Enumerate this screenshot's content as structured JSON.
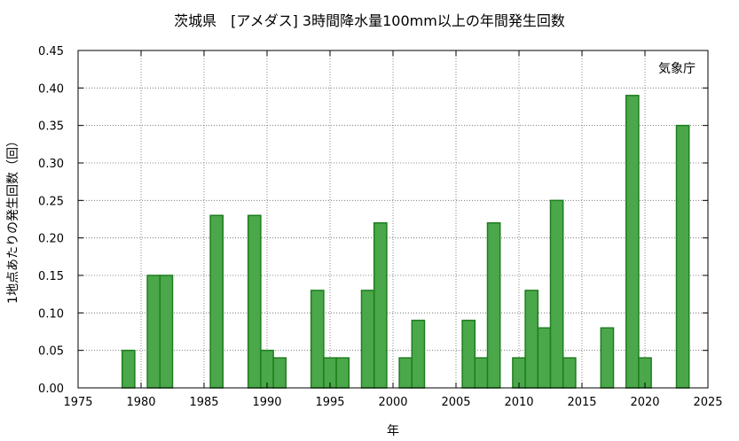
{
  "chart_data": {
    "type": "bar",
    "title": "茨城県　[アメダス] 3時間降水量100mm以上の年間発生回数",
    "xlabel": "年",
    "ylabel": "1地点あたりの発生回数（回）",
    "annotation": "気象庁",
    "xlim": [
      1975,
      2025
    ],
    "ylim": [
      0,
      0.45
    ],
    "x_ticks": [
      "1975",
      "1980",
      "1985",
      "1990",
      "1995",
      "2000",
      "2005",
      "2010",
      "2015",
      "2020",
      "2025"
    ],
    "y_ticks": [
      "0.00",
      "0.05",
      "0.10",
      "0.15",
      "0.20",
      "0.25",
      "0.30",
      "0.35",
      "0.40",
      "0.45"
    ],
    "grid": true,
    "bar_color": "#4aa84a",
    "bar_edge_color": "#1e7d1e",
    "categories": [
      1979,
      1981,
      1982,
      1986,
      1989,
      1990,
      1991,
      1994,
      1995,
      1996,
      1998,
      1999,
      2001,
      2002,
      2006,
      2007,
      2008,
      2010,
      2011,
      2012,
      2013,
      2014,
      2017,
      2019,
      2020,
      2023
    ],
    "values": [
      0.05,
      0.15,
      0.15,
      0.23,
      0.23,
      0.05,
      0.04,
      0.13,
      0.04,
      0.04,
      0.13,
      0.22,
      0.04,
      0.09,
      0.09,
      0.04,
      0.22,
      0.04,
      0.13,
      0.08,
      0.25,
      0.04,
      0.08,
      0.39,
      0.04,
      0.35
    ]
  }
}
